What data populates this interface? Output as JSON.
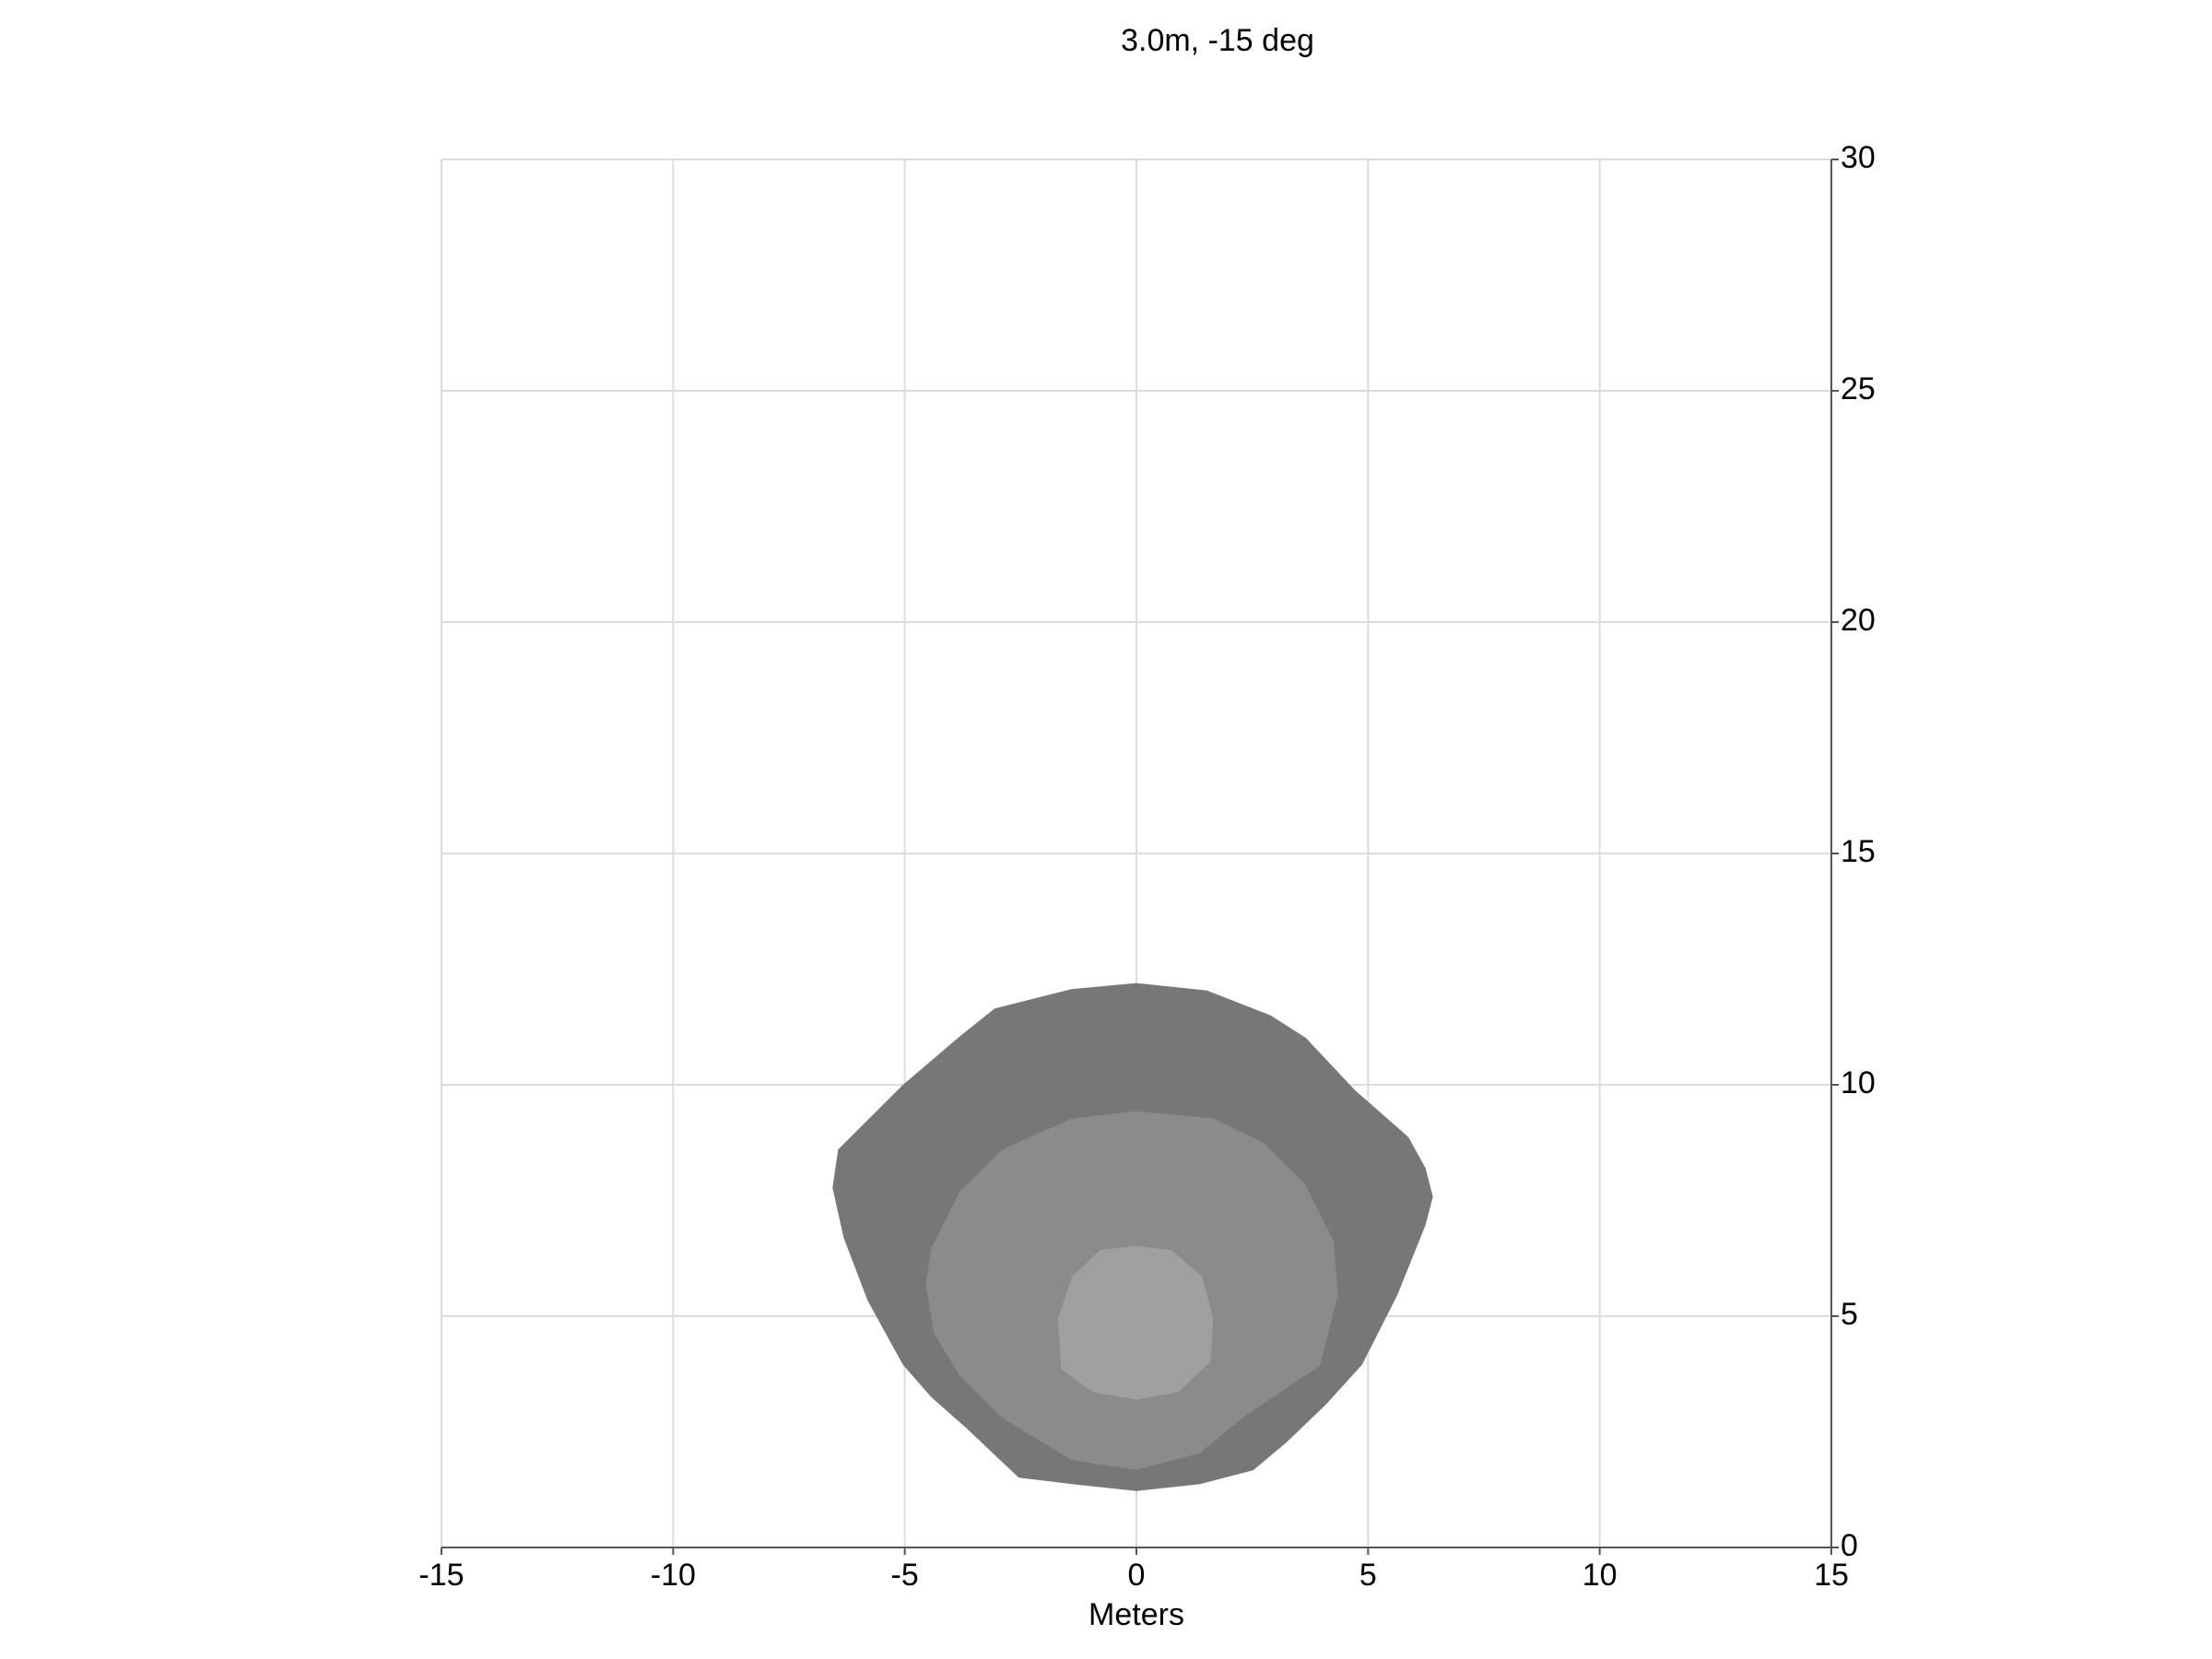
{
  "chart_data": {
    "type": "contour",
    "title": "3.0m, -15 deg",
    "xlabel": "Meters",
    "xlim": [
      -15,
      15
    ],
    "ylim": [
      0,
      30
    ],
    "xticks": [
      -15,
      -10,
      -5,
      0,
      5,
      10,
      15
    ],
    "yticks": [
      0,
      5,
      10,
      15,
      20,
      25,
      30
    ],
    "grid": true,
    "y_axis_side": "right",
    "series": [
      {
        "color": "#777777",
        "x": [
          0,
          -1.39,
          -3.06,
          -3.82,
          -5.04,
          -5.89,
          -6.44,
          -6.56,
          -6.32,
          -5.8,
          -5.04,
          -4.43,
          -3.67,
          -2.54,
          -1.39,
          0,
          1.37,
          2.52,
          3.25,
          4.1,
          4.87,
          5.63,
          6.24,
          6.4,
          6.24,
          5.87,
          4.72,
          3.66,
          2.9,
          1.52
        ],
        "y": [
          12.2,
          12.07,
          11.65,
          11.04,
          10.0,
          9.15,
          8.6,
          7.77,
          6.7,
          5.33,
          3.95,
          3.25,
          2.58,
          1.51,
          1.37,
          1.22,
          1.37,
          1.67,
          2.28,
          3.1,
          3.95,
          5.45,
          6.97,
          7.58,
          8.2,
          8.87,
          9.88,
          11.01,
          11.5,
          12.04
        ]
      },
      {
        "color": "#8b8b8b",
        "x": [
          0,
          -1.39,
          -2.9,
          -3.82,
          -4.43,
          -4.55,
          -4.37,
          -3.82,
          -2.9,
          -1.39,
          0,
          1.37,
          2.29,
          3.96,
          4.35,
          4.26,
          3.65,
          2.74,
          1.67
        ],
        "y": [
          9.43,
          9.27,
          8.6,
          7.68,
          6.46,
          5.7,
          4.63,
          3.72,
          2.8,
          1.89,
          1.68,
          2.04,
          2.8,
          3.93,
          5.46,
          6.62,
          7.84,
          8.75,
          9.27
        ]
      },
      {
        "color": "#a0a0a0",
        "x": [
          0,
          -0.78,
          -1.39,
          -1.69,
          -1.63,
          -0.93,
          0,
          0.9,
          1.6,
          1.66,
          1.42,
          0.75
        ],
        "y": [
          6.52,
          6.43,
          5.85,
          4.94,
          3.87,
          3.35,
          3.2,
          3.35,
          4.02,
          4.94,
          5.85,
          6.43
        ]
      }
    ]
  }
}
